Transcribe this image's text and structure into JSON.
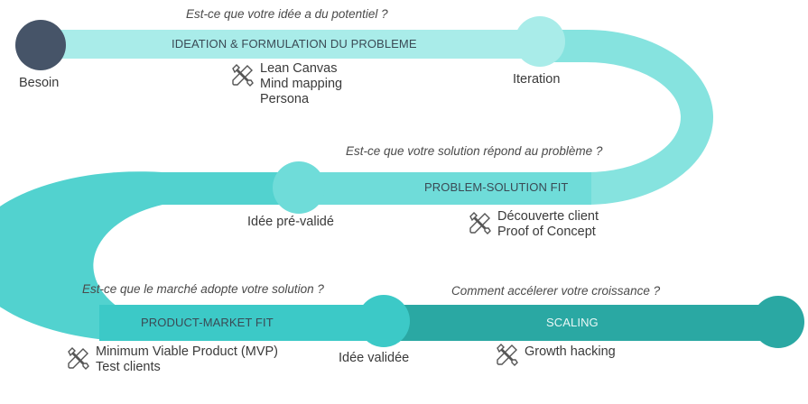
{
  "colors": {
    "band1": "#a9ece9",
    "band2": "#6fdcd9",
    "band3": "#3cc9c7",
    "band4": "#2aa8a3",
    "start_node": "#465468",
    "text": "#3a3a3a"
  },
  "stages": [
    {
      "question": "Est-ce que votre idée a du potentiel ?",
      "title": "IDEATION & FORMULATION DU PROBLEME",
      "tools": [
        "Lean Canvas",
        "Mind mapping",
        "Persona"
      ]
    },
    {
      "question": "Est-ce que votre solution répond au problème ?",
      "title": "PROBLEM-SOLUTION FIT",
      "tools": [
        "Découverte client",
        "Proof of Concept"
      ]
    },
    {
      "question": "Est-ce que le marché adopte votre solution ?",
      "title": "PRODUCT-MARKET FIT",
      "tools": [
        "Minimum Viable Product (MVP)",
        "Test clients"
      ]
    },
    {
      "question": "Comment accélerer votre croissance ?",
      "title": "SCALING",
      "tools": [
        "Growth hacking"
      ]
    }
  ],
  "nodes": [
    "Besoin",
    "Iteration",
    "Idée pré-validé",
    "Idée validée"
  ],
  "icons": {
    "tools": "wrench-screwdriver-icon"
  }
}
